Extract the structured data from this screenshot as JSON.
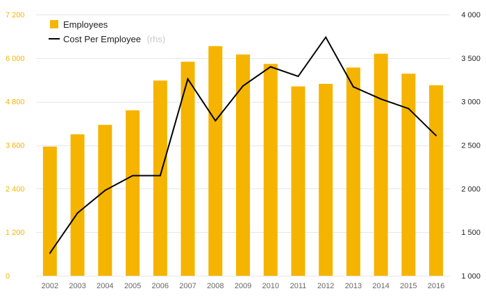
{
  "chart_data": {
    "type": "bar",
    "categories": [
      "2002",
      "2003",
      "2004",
      "2005",
      "2006",
      "2007",
      "2008",
      "2009",
      "2010",
      "2011",
      "2012",
      "2013",
      "2014",
      "2015",
      "2016"
    ],
    "series": [
      {
        "name": "Employees",
        "type": "bar",
        "axis": "left",
        "color": "#f5b400",
        "values": [
          3560,
          3900,
          4160,
          4560,
          5380,
          5900,
          6330,
          6100,
          5840,
          5220,
          5290,
          5740,
          6120,
          5570,
          5250
        ]
      },
      {
        "name": "Cost Per Employee",
        "name_suffix": "(rhs)",
        "type": "line",
        "axis": "right",
        "color": "#000000",
        "values": [
          1260,
          1720,
          1980,
          2150,
          2150,
          3260,
          2780,
          3180,
          3400,
          3290,
          3740,
          3170,
          3030,
          2920,
          2610
        ]
      }
    ],
    "y_left": {
      "ylim": [
        0,
        7200
      ],
      "ticks": [
        0,
        1200,
        2400,
        3600,
        4800,
        6000,
        7200
      ],
      "tick_labels": [
        "0",
        "1 200",
        "2 400",
        "3 600",
        "4 800",
        "6 000",
        "7 200"
      ],
      "color": "#f5b400"
    },
    "y_right": {
      "ylim": [
        1000,
        4000
      ],
      "ticks": [
        1000,
        1500,
        2000,
        2500,
        3000,
        3500,
        4000
      ],
      "tick_labels": [
        "1 000",
        "1 500",
        "2 000",
        "2 500",
        "3 000",
        "3 500",
        "4 000"
      ],
      "color": "#222222"
    },
    "title": "",
    "xlabel": "",
    "ylabel": "",
    "grid": true,
    "legend_position": "top-left"
  }
}
